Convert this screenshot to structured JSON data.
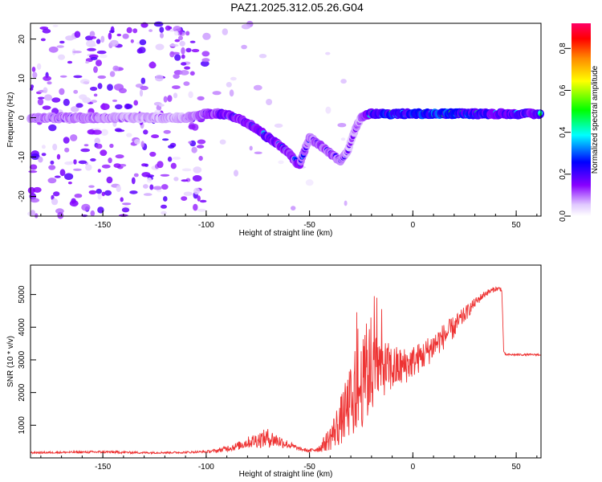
{
  "title": "PAZ1.2025.312.05.26.G04",
  "chart_data": [
    {
      "type": "heatmap",
      "xlabel": "Height of straight line (km)",
      "ylabel": "Frequency (Hz)",
      "xlim": [
        -185,
        62
      ],
      "ylim": [
        -25,
        24
      ],
      "xticks": [
        "-150",
        "-100",
        "-50",
        "0",
        "50"
      ],
      "xtick_values": [
        -150,
        -100,
        -50,
        0,
        50
      ],
      "yticks": [
        "-20",
        "-10",
        "0",
        "10",
        "20"
      ],
      "ytick_values": [
        -20,
        -10,
        0,
        10,
        20
      ],
      "colorbar": {
        "label": "Normalized spectral amplitude",
        "range": [
          0.0,
          0.92
        ],
        "ticks": [
          "0.0",
          "0.2",
          "0.4",
          "0.6",
          "0.8"
        ],
        "tick_values": [
          0.0,
          0.2,
          0.4,
          0.6,
          0.8
        ],
        "colors": [
          "#ffffff",
          "#e0c8ff",
          "#8800ff",
          "#0000ff",
          "#00ffff",
          "#00ff00",
          "#ffff00",
          "#ff8800",
          "#ff0000",
          "#ff0066"
        ]
      },
      "ridge": {
        "heights": [
          -185,
          -160,
          -130,
          -110,
          -100,
          -92,
          -85,
          -78,
          -70,
          -62,
          -55,
          -50,
          -45,
          -40,
          -35,
          -32,
          -28,
          -25,
          -20,
          -10,
          0,
          10,
          20,
          30,
          40,
          50,
          62
        ],
        "frequencies": [
          0,
          0,
          0,
          0,
          1,
          1,
          0,
          -2,
          -5,
          -8,
          -12,
          -5,
          -7,
          -9,
          -11,
          -9,
          -3,
          0,
          1,
          1,
          1,
          1,
          1,
          1,
          1,
          1,
          1
        ],
        "amplitudes": [
          0.25,
          0.25,
          0.2,
          0.2,
          0.3,
          0.45,
          0.4,
          0.45,
          0.45,
          0.4,
          0.35,
          0.25,
          0.3,
          0.3,
          0.3,
          0.2,
          0.2,
          0.2,
          0.6,
          0.7,
          0.65,
          0.75,
          0.7,
          0.6,
          0.5,
          0.5,
          0.5
        ]
      }
    },
    {
      "type": "line",
      "xlabel": "Height of straight line (km)",
      "ylabel": "SNR (10 * v/v)",
      "xlim": [
        -185,
        62
      ],
      "ylim": [
        0,
        5900
      ],
      "xticks": [
        "-150",
        "-100",
        "-50",
        "0",
        "50"
      ],
      "xtick_values": [
        -150,
        -100,
        -50,
        0,
        50
      ],
      "yticks": [
        "1000",
        "2000",
        "3000",
        "4000",
        "5000"
      ],
      "ytick_values": [
        1000,
        2000,
        3000,
        4000,
        5000
      ],
      "color": "#ee3333",
      "envelope": {
        "x": [
          -185,
          -170,
          -150,
          -130,
          -110,
          -100,
          -95,
          -90,
          -85,
          -80,
          -75,
          -70,
          -65,
          -60,
          -55,
          -50,
          -45,
          -40,
          -35,
          -30,
          -25,
          -22,
          -20,
          -18,
          -15,
          -10,
          -5,
          0,
          5,
          10,
          15,
          20,
          25,
          30,
          35,
          40,
          43,
          44,
          45,
          50,
          55,
          62
        ],
        "base": [
          150,
          160,
          170,
          150,
          160,
          180,
          200,
          260,
          320,
          420,
          480,
          520,
          460,
          360,
          260,
          200,
          260,
          500,
          900,
          1400,
          1800,
          2100,
          2300,
          2400,
          2500,
          2500,
          2600,
          2800,
          3000,
          3300,
          3600,
          3900,
          4300,
          4700,
          5000,
          5150,
          5150,
          3200,
          3150,
          3150,
          3150,
          3150
        ],
        "amp": [
          60,
          60,
          80,
          60,
          60,
          70,
          120,
          200,
          250,
          350,
          500,
          600,
          400,
          250,
          120,
          100,
          250,
          800,
          1500,
          2200,
          2600,
          3000,
          2800,
          2400,
          1800,
          1500,
          1200,
          1000,
          900,
          900,
          800,
          700,
          500,
          300,
          200,
          150,
          150,
          80,
          60,
          60,
          60,
          60
        ]
      }
    }
  ]
}
